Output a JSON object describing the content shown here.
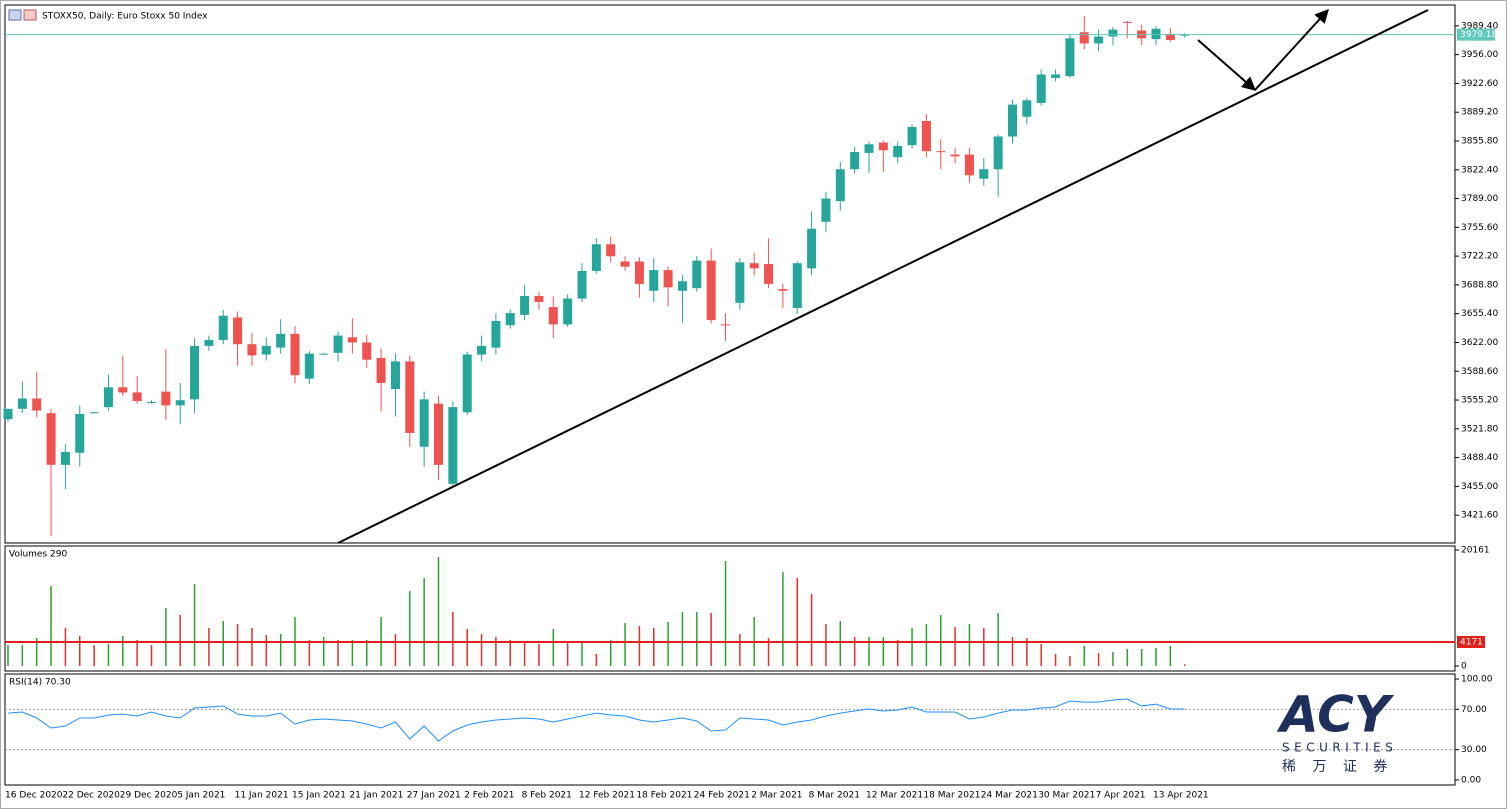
{
  "chart_data": [
    {
      "type": "candlestick",
      "title": "STOXX50, Daily: Euro Stoxx 50 Index",
      "categories": [
        "16 Dec 2020",
        null,
        null,
        null,
        "22 Dec 2020",
        null,
        null,
        null,
        "29 Dec 2020",
        null,
        null,
        null,
        "5 Jan 2021",
        null,
        null,
        null,
        "11 Jan 2021",
        null,
        null,
        null,
        "15 Jan 2021",
        null,
        null,
        null,
        "21 Jan 2021",
        null,
        null,
        null,
        "27 Jan 2021",
        null,
        null,
        null,
        "2 Feb 2021",
        null,
        null,
        null,
        "8 Feb 2021",
        null,
        null,
        null,
        "12 Feb 2021",
        null,
        null,
        null,
        "18 Feb 2021",
        null,
        null,
        null,
        "24 Feb 2021",
        null,
        null,
        null,
        "2 Mar 2021",
        null,
        null,
        null,
        "8 Mar 2021",
        null,
        null,
        null,
        "12 Mar 2021",
        null,
        null,
        null,
        "18 Mar 2021",
        null,
        null,
        null,
        "24 Mar 2021",
        null,
        null,
        null,
        "30 Mar 2021",
        null,
        null,
        null,
        "7 Apr 2021",
        null,
        null,
        null,
        "13 Apr 2021",
        null,
        null
      ],
      "open": [
        3533,
        3545,
        3557,
        3540,
        3480,
        3494,
        3541,
        3547,
        3570,
        3564,
        3553,
        3565,
        3549,
        3556,
        3618,
        3625,
        3651,
        3620,
        3608,
        3616,
        3632,
        3580,
        3609,
        3610,
        3628,
        3622,
        3604,
        3568,
        3600,
        3501,
        3551,
        3458,
        3541,
        3608,
        3616,
        3642,
        3654,
        3676,
        3663,
        3643,
        3673,
        3705,
        3736,
        3716,
        3716,
        3682,
        3706,
        3682,
        3685,
        3717,
        3643,
        3668,
        3714,
        3713,
        3684,
        3662,
        3708,
        3762,
        3786,
        3823,
        3842,
        3854,
        3837,
        3851,
        3879,
        3844,
        3840,
        3840,
        3812,
        3823,
        3861,
        3884,
        3900,
        3929,
        3931,
        3982,
        3969,
        3977,
        3994,
        3984,
        3974,
        3980,
        3978
      ],
      "high": [
        3545,
        3577,
        3588,
        3545,
        3504,
        3549,
        3542,
        3585,
        3607,
        3583,
        3555,
        3614,
        3575,
        3627,
        3630,
        3660,
        3658,
        3633,
        3628,
        3649,
        3641,
        3612,
        3610,
        3635,
        3650,
        3631,
        3615,
        3609,
        3607,
        3565,
        3560,
        3554,
        3611,
        3630,
        3656,
        3660,
        3689,
        3681,
        3675,
        3678,
        3714,
        3743,
        3745,
        3722,
        3721,
        3720,
        3710,
        3700,
        3722,
        3731,
        3656,
        3720,
        3726,
        3743,
        3690,
        3716,
        3774,
        3797,
        3832,
        3849,
        3855,
        3856,
        3855,
        3875,
        3887,
        3858,
        3848,
        3848,
        3836,
        3863,
        3904,
        3906,
        3939,
        3939,
        3979,
        4001,
        3985,
        3988,
        3995,
        3991,
        3989,
        3987,
        3981
      ],
      "low": [
        3530,
        3540,
        3535,
        3397,
        3452,
        3478,
        3540,
        3543,
        3560,
        3551,
        3551,
        3532,
        3527,
        3540,
        3612,
        3620,
        3595,
        3595,
        3601,
        3609,
        3575,
        3574,
        3608,
        3600,
        3609,
        3593,
        3542,
        3536,
        3501,
        3478,
        3462,
        3456,
        3538,
        3600,
        3608,
        3638,
        3648,
        3660,
        3627,
        3640,
        3669,
        3702,
        3715,
        3705,
        3674,
        3669,
        3664,
        3645,
        3681,
        3644,
        3624,
        3660,
        3700,
        3685,
        3662,
        3655,
        3700,
        3750,
        3775,
        3818,
        3819,
        3820,
        3830,
        3847,
        3837,
        3823,
        3830,
        3807,
        3804,
        3791,
        3853,
        3875,
        3897,
        3925,
        3929,
        3962,
        3960,
        3967,
        3975,
        3967,
        3967,
        3971,
        3976
      ],
      "close": [
        3545,
        3557,
        3543,
        3480,
        3495,
        3539,
        3541,
        3570,
        3564,
        3554,
        3553,
        3549,
        3555,
        3618,
        3625,
        3653,
        3620,
        3607,
        3618,
        3632,
        3584,
        3609,
        3609,
        3630,
        3622,
        3602,
        3575,
        3600,
        3517,
        3556,
        3480,
        3547,
        3608,
        3618,
        3647,
        3656,
        3676,
        3669,
        3643,
        3673,
        3705,
        3736,
        3722,
        3710,
        3690,
        3706,
        3686,
        3693,
        3717,
        3648,
        3642,
        3715,
        3708,
        3690,
        3682,
        3714,
        3754,
        3789,
        3823,
        3843,
        3852,
        3845,
        3850,
        3872,
        3844,
        3843,
        3838,
        3816,
        3823,
        3861,
        3898,
        3903,
        3933,
        3933,
        3975,
        3969,
        3977,
        3985,
        3993,
        3975,
        3986,
        3973,
        3979.18
      ],
      "up_color": "#26a69a",
      "down_color": "#ef5350",
      "current_price": 3979.18,
      "current_price_color": "#5fc9be",
      "ylim": [
        3389.3,
        4013.6
      ],
      "yticks": [
        {
          "value": 3421.6,
          "label": "3421.60"
        },
        {
          "value": 3455.0,
          "label": "3455.00"
        },
        {
          "value": 3488.4,
          "label": "3488.40"
        },
        {
          "value": 3521.8,
          "label": "3521.80"
        },
        {
          "value": 3555.2,
          "label": "3555.20"
        },
        {
          "value": 3588.6,
          "label": "3588.60"
        },
        {
          "value": 3622.0,
          "label": "3622.00"
        },
        {
          "value": 3655.4,
          "label": "3655.40"
        },
        {
          "value": 3688.8,
          "label": "3688.80"
        },
        {
          "value": 3722.2,
          "label": "3722.20"
        },
        {
          "value": 3755.6,
          "label": "3755.60"
        },
        {
          "value": 3789.0,
          "label": "3789.00"
        },
        {
          "value": 3822.4,
          "label": "3822.40"
        },
        {
          "value": 3855.8,
          "label": "3855.80"
        },
        {
          "value": 3889.2,
          "label": "3889.20"
        },
        {
          "value": 3922.6,
          "label": "3922.60"
        },
        {
          "value": 3956.0,
          "label": "3956.00"
        },
        {
          "value": 3989.4,
          "label": "3989.40"
        }
      ]
    },
    {
      "type": "bar",
      "title": "Volumes 290",
      "values": [
        3650,
        3650,
        4866,
        13904,
        6604,
        5214,
        3650,
        3824,
        5214,
        4519,
        3650,
        10080,
        8864,
        14252,
        6604,
        7821,
        7300,
        6604,
        5388,
        5562,
        8516,
        4519,
        5040,
        4519,
        4519,
        4519,
        8516,
        5562,
        13035,
        15294,
        18944,
        9385,
        6431,
        5562,
        5040,
        4519,
        4171,
        3824,
        6431,
        3998,
        3998,
        2086,
        4519,
        7473,
        6952,
        6604,
        7647,
        9385,
        9385,
        9211,
        18249,
        5562,
        8516,
        4866,
        16337,
        15294,
        12514,
        7300,
        7821,
        5040,
        5040,
        5040,
        4519,
        6604,
        7300,
        8864,
        6778,
        7300,
        6604,
        9211,
        5040,
        4866,
        3824,
        2086,
        1738,
        3476,
        2259,
        2433,
        2955,
        2955,
        3128,
        3476,
        290
      ],
      "up_color": "#2ca02c",
      "down_color": "#e0312e",
      "level": 4171,
      "level_color": "#e0201a",
      "ylim": [
        -869,
        20856
      ],
      "yticks": [
        0,
        20161
      ]
    },
    {
      "type": "line",
      "title": "RSI(14) 70.30",
      "values": [
        66.3,
        67.3,
        61.4,
        51.5,
        53.5,
        61.4,
        61.4,
        64.4,
        65.3,
        63.4,
        67.3,
        63.4,
        61.4,
        71.3,
        72.3,
        73.3,
        65.3,
        63.4,
        63.4,
        66.3,
        55.4,
        59.4,
        60.4,
        59.4,
        58.4,
        55.4,
        51.5,
        57.4,
        40.6,
        53.5,
        38.6,
        48.5,
        54.5,
        57.4,
        59.4,
        60.4,
        61.4,
        60.4,
        57.4,
        60.4,
        63.4,
        66.3,
        64.4,
        63.4,
        59.4,
        57.4,
        59.4,
        61.4,
        58.4,
        48.5,
        49.5,
        61.4,
        60.4,
        59.4,
        54.5,
        57.4,
        59.4,
        63.4,
        66.3,
        68.3,
        70.3,
        68.3,
        69.3,
        72.3,
        67.3,
        67.3,
        67.3,
        60.4,
        62.4,
        66.3,
        69.3,
        69.3,
        71.3,
        72.3,
        78.2,
        77.2,
        77.2,
        79.2,
        80.2,
        73.3,
        75.2,
        70.3,
        70.3
      ],
      "color": "#1e90ff",
      "levels": [
        70,
        30
      ],
      "ylim": [
        -5,
        105
      ],
      "yticks": [
        {
          "value": 0,
          "label": "0.00"
        },
        {
          "value": 30,
          "label": "30.00"
        },
        {
          "value": 70,
          "label": "70.00"
        },
        {
          "value": 100,
          "label": "100.00"
        }
      ]
    }
  ],
  "logo": {
    "name": "ACY",
    "sub": "SECURITIES",
    "cn": "稀 万 证 券"
  }
}
